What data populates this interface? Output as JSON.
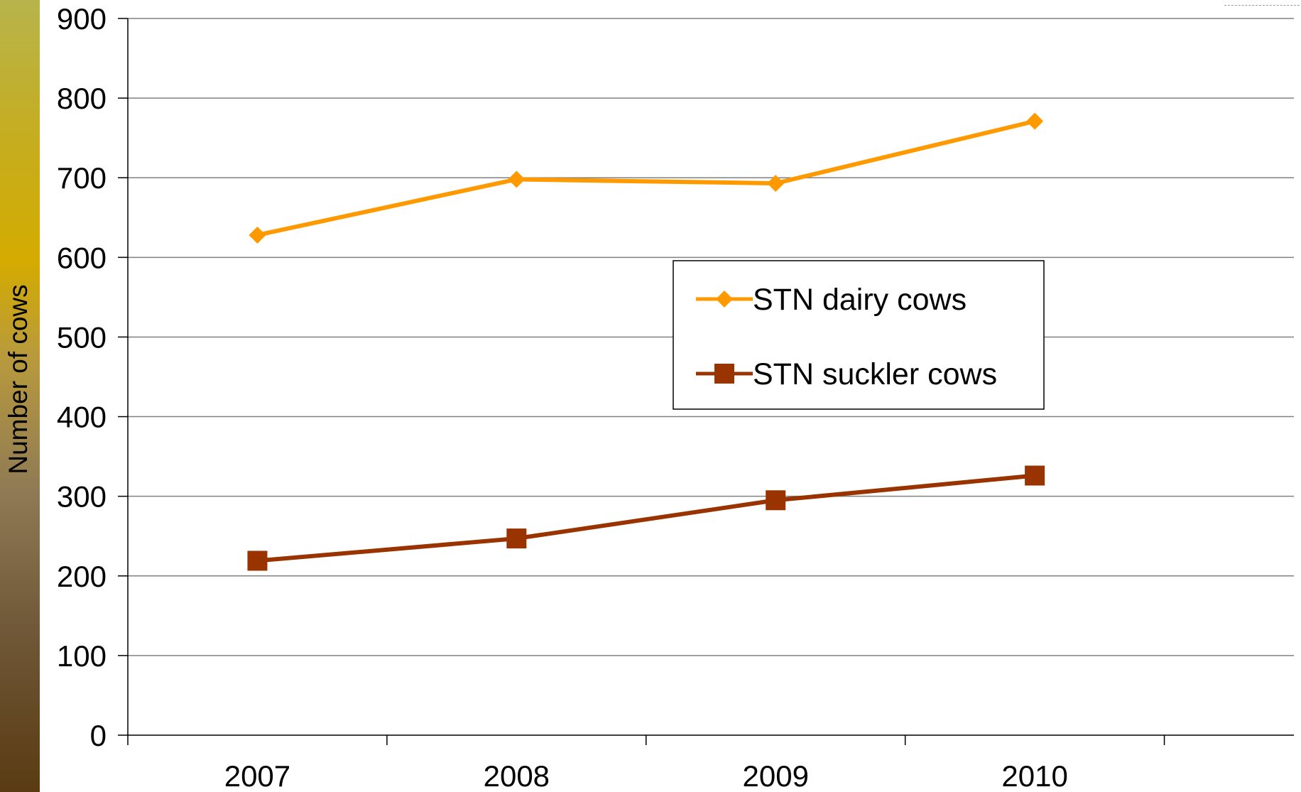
{
  "chart_data": {
    "type": "line",
    "title": "",
    "xlabel": "",
    "ylabel": "Number of cows",
    "categories": [
      "2007",
      "2008",
      "2009",
      "2010"
    ],
    "ylim": [
      0,
      900
    ],
    "yticks": [
      0,
      100,
      200,
      300,
      400,
      500,
      600,
      700,
      800,
      900
    ],
    "grid": true,
    "legend": "center-right",
    "series": [
      {
        "name": "STN dairy cows",
        "values": [
          628,
          698,
          693,
          771
        ],
        "color": "#ff9900",
        "marker": "diamond"
      },
      {
        "name": "STN suckler cows",
        "values": [
          219,
          247,
          295,
          326
        ],
        "color": "#993300",
        "marker": "square"
      }
    ]
  },
  "colors": {
    "sidebar_top": "#b7b44c",
    "sidebar_mid": "#d4ab00",
    "sidebar_bottom": "#5a3b13",
    "gridline": "#808080",
    "axis": "#000000"
  }
}
